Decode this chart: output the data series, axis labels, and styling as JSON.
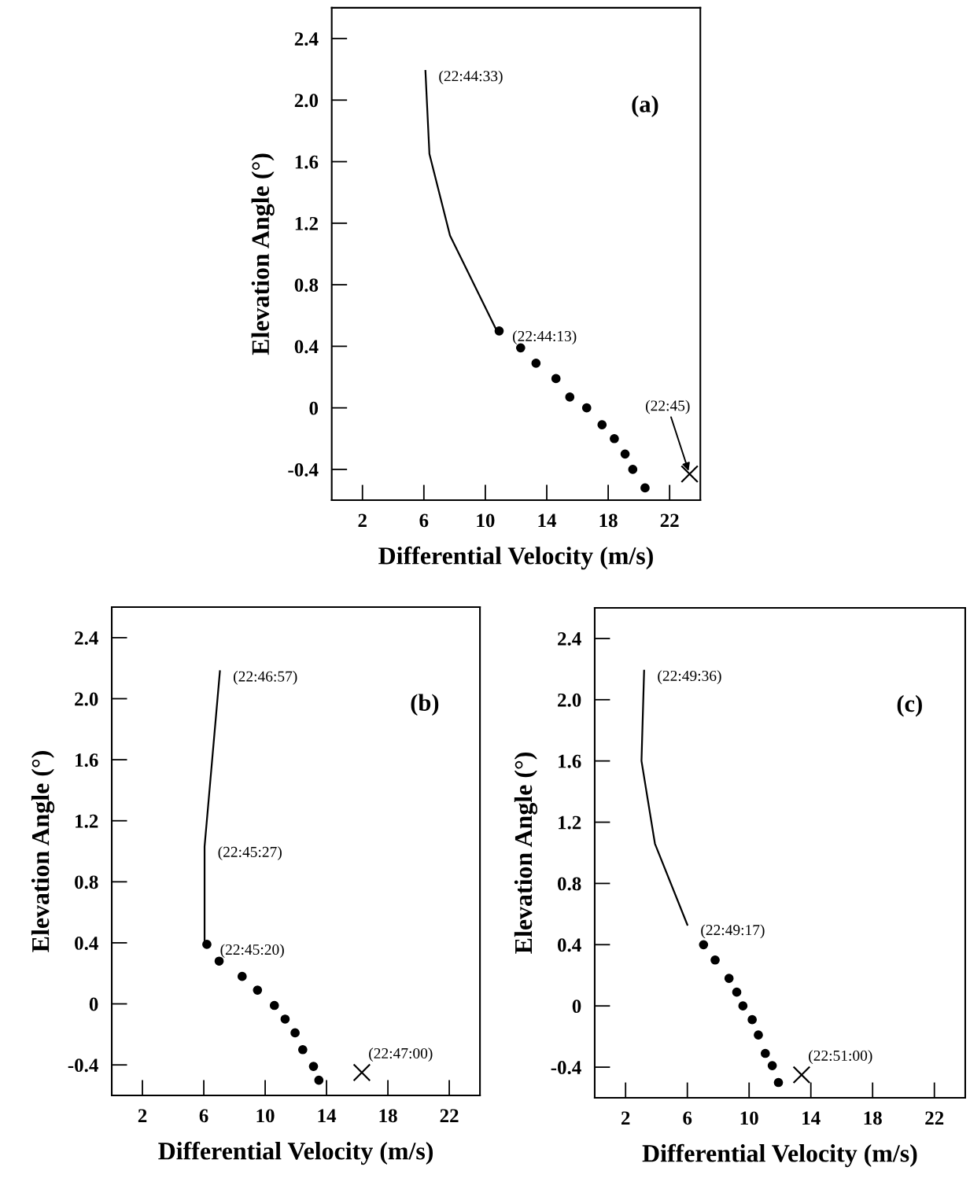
{
  "chart_data": [
    {
      "type": "scatter",
      "title": "(a)",
      "xlabel": "Differential Velocity (m/s)",
      "ylabel": "Elevation Angle (°)",
      "xlim": [
        0,
        24
      ],
      "ylim": [
        -0.6,
        2.6
      ],
      "xticks": [
        2,
        6,
        10,
        14,
        18,
        22
      ],
      "yticks": [
        {
          "value": -0.4,
          "label": "-0.4"
        },
        0,
        {
          "value": 0.4,
          "label": "0.4"
        },
        {
          "value": 0.8,
          "label": "0.8"
        },
        {
          "value": 1.2,
          "label": "1.2"
        },
        {
          "value": 1.6,
          "label": "1.6"
        },
        {
          "value": 2,
          "label": "2.0"
        },
        {
          "value": 2.4,
          "label": "2.4"
        }
      ],
      "grid": false,
      "legend": false,
      "series": [
        {
          "type": "line",
          "color": "#000000",
          "marker": "none",
          "line_style": "solid",
          "x": [
            6.1,
            6.36,
            7.7,
            10.7
          ],
          "values": [
            2.19,
            1.65,
            1.12,
            0.51
          ]
        },
        {
          "color": "#000000",
          "marker": "circle",
          "x": [
            10.9,
            12.3,
            13.3,
            14.6,
            15.5,
            16.6,
            17.6,
            18.4,
            19.1,
            19.6,
            20.4
          ],
          "values": [
            0.5,
            0.39,
            0.29,
            0.19,
            0.07,
            0.0,
            -0.11,
            -0.2,
            -0.3,
            -0.4,
            -0.52
          ]
        },
        {
          "color": "#000000",
          "marker": "cross",
          "x": [
            23.3
          ],
          "values": [
            -0.43
          ]
        }
      ],
      "annotations": [
        {
          "text": "(22:44:33)",
          "x": 6.1,
          "y": 2.19
        },
        {
          "text": "(22:44:13)",
          "x": 10.9,
          "y": 0.5
        },
        {
          "text": "(22:45)",
          "x": 23.3,
          "y": -0.43
        }
      ]
    },
    {
      "type": "scatter",
      "title": "(b)",
      "xlabel": "Differential Velocity (m/s)",
      "ylabel": "Elevation Angle (°)",
      "xlim": [
        0,
        24
      ],
      "ylim": [
        -0.6,
        2.6
      ],
      "xticks": [
        2,
        6,
        10,
        14,
        18,
        22
      ],
      "yticks": [
        {
          "value": -0.4,
          "label": "-0.4"
        },
        0,
        {
          "value": 0.4,
          "label": "0.4"
        },
        {
          "value": 0.8,
          "label": "0.8"
        },
        {
          "value": 1.2,
          "label": "1.2"
        },
        {
          "value": 1.6,
          "label": "1.6"
        },
        {
          "value": 2,
          "label": "2.0"
        },
        {
          "value": 2.4,
          "label": "2.4"
        }
      ],
      "grid": false,
      "legend": false,
      "series": [
        {
          "type": "line",
          "color": "#000000",
          "marker": "none",
          "line_style": "solid",
          "x": [
            7.05,
            6.05,
            6.05
          ],
          "values": [
            2.18,
            1.03,
            0.39
          ]
        },
        {
          "color": "#000000",
          "marker": "circle",
          "x": [
            6.2,
            7.0,
            8.5,
            9.5,
            10.6,
            11.3,
            11.95,
            12.45,
            13.15,
            13.5
          ],
          "values": [
            0.39,
            0.28,
            0.18,
            0.09,
            -0.01,
            -0.1,
            -0.19,
            -0.3,
            -0.41,
            -0.5
          ]
        },
        {
          "color": "#000000",
          "marker": "cross",
          "x": [
            16.3
          ],
          "values": [
            -0.45
          ]
        }
      ],
      "annotations": [
        {
          "text": "(22:46:57)",
          "x": 7.05,
          "y": 2.18
        },
        {
          "text": "(22:45:27)",
          "x": 6.05,
          "y": 1.03
        },
        {
          "text": "(22:45:20)",
          "x": 6.2,
          "y": 0.39
        },
        {
          "text": "(22:47:00)",
          "x": 16.3,
          "y": -0.45
        }
      ]
    },
    {
      "type": "scatter",
      "title": "(c)",
      "xlabel": "Differential Velocity (m/s)",
      "ylabel": "Elevation Angle (°)",
      "xlim": [
        0,
        24
      ],
      "ylim": [
        -0.6,
        2.6
      ],
      "xticks": [
        2,
        6,
        10,
        14,
        18,
        22
      ],
      "yticks": [
        {
          "value": -0.4,
          "label": "-0.4"
        },
        0,
        {
          "value": 0.4,
          "label": "0.4"
        },
        {
          "value": 0.8,
          "label": "0.8"
        },
        {
          "value": 1.2,
          "label": "1.2"
        },
        {
          "value": 1.6,
          "label": "1.6"
        },
        {
          "value": 2,
          "label": "2.0"
        },
        {
          "value": 2.4,
          "label": "2.4"
        }
      ],
      "grid": false,
      "legend": false,
      "series": [
        {
          "type": "line",
          "color": "#000000",
          "marker": "none",
          "line_style": "solid",
          "x": [
            3.2,
            3.03,
            3.9,
            6.0
          ],
          "values": [
            2.19,
            1.6,
            1.06,
            0.53
          ]
        },
        {
          "color": "#000000",
          "marker": "circle",
          "x": [
            7.05,
            7.8,
            8.7,
            9.2,
            9.6,
            10.2,
            10.6,
            11.05,
            11.5,
            11.9
          ],
          "values": [
            0.4,
            0.3,
            0.18,
            0.09,
            0.0,
            -0.09,
            -0.19,
            -0.31,
            -0.39,
            -0.5
          ]
        },
        {
          "color": "#000000",
          "marker": "cross",
          "x": [
            13.4
          ],
          "values": [
            -0.45
          ]
        }
      ],
      "annotations": [
        {
          "text": "(22:49:36)",
          "x": 3.2,
          "y": 2.19
        },
        {
          "text": "(22:49:17)",
          "x": 6.0,
          "y": 0.53
        },
        {
          "text": "(22:51:00)",
          "x": 13.4,
          "y": -0.45
        }
      ]
    }
  ]
}
